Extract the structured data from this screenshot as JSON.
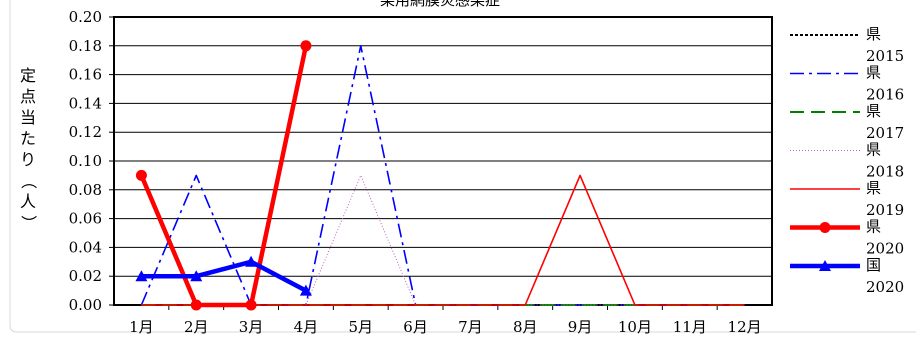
{
  "chart_data": {
    "type": "line",
    "title": "某用網膜炎感染症",
    "ylabel": "定点当たり（人）",
    "ylim": [
      0,
      0.2
    ],
    "yticks": [
      "0.00",
      "0.02",
      "0.04",
      "0.06",
      "0.08",
      "0.10",
      "0.12",
      "0.14",
      "0.16",
      "0.18",
      "0.20"
    ],
    "categories": [
      "1月",
      "2月",
      "3月",
      "4月",
      "5月",
      "6月",
      "7月",
      "8月",
      "9月",
      "10月",
      "11月",
      "12月"
    ],
    "grid": true,
    "legend_position": "right",
    "series": [
      {
        "name": "県2015",
        "color": "#000000",
        "style": "dotted",
        "width": 2,
        "marker": "none",
        "values": [
          0,
          0,
          0,
          0,
          0,
          0,
          0,
          0,
          0,
          0,
          0,
          0
        ]
      },
      {
        "name": "県2016",
        "color": "#0000ff",
        "style": "dashdot",
        "width": 1.6,
        "marker": "none",
        "values": [
          0,
          0.09,
          0,
          0,
          0.18,
          0,
          0,
          0,
          0,
          0,
          0,
          0
        ]
      },
      {
        "name": "県2017",
        "color": "#008000",
        "style": "dashed",
        "width": 2,
        "marker": "none",
        "values": [
          0,
          0,
          0,
          0,
          0,
          0,
          0,
          0,
          0,
          0,
          0,
          0
        ]
      },
      {
        "name": "県2018",
        "color": "#c060c0",
        "style": "dotted",
        "width": 1,
        "marker": "none",
        "values": [
          0,
          0,
          0,
          0,
          0.09,
          0,
          0,
          0,
          0,
          0,
          0,
          0
        ]
      },
      {
        "name": "県2019",
        "color": "#ff0000",
        "style": "solid",
        "width": 1.6,
        "marker": "none",
        "values": [
          0,
          0,
          0,
          0,
          0,
          0,
          0,
          0,
          0.09,
          0,
          0,
          0
        ]
      },
      {
        "name": "県2020",
        "color": "#ff0000",
        "style": "solid",
        "width": 4.5,
        "marker": "circle",
        "values": [
          0.09,
          0,
          0,
          0.18,
          null,
          null,
          null,
          null,
          null,
          null,
          null,
          null
        ]
      },
      {
        "name": "国2020",
        "color": "#0000ff",
        "style": "solid",
        "width": 4.5,
        "marker": "triangle",
        "values": [
          0.02,
          0.02,
          0.03,
          0.01,
          null,
          null,
          null,
          null,
          null,
          null,
          null,
          null
        ]
      }
    ]
  }
}
